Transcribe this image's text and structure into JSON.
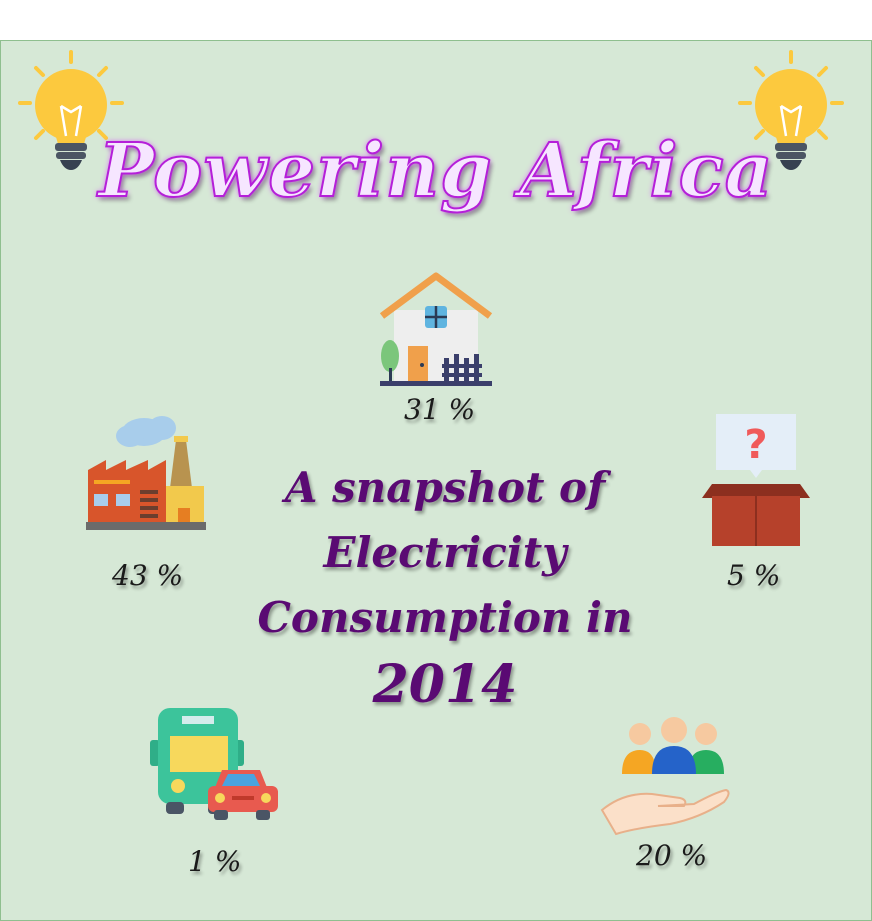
{
  "title": "Powering Africa",
  "subtitle_lines": [
    "A snapshot of",
    "Electricity",
    "Consumption in"
  ],
  "year": "2014",
  "sectors": {
    "residential": {
      "icon": "house-icon",
      "value": "31 %"
    },
    "industry": {
      "icon": "factory-icon",
      "value": "43 %"
    },
    "other": {
      "icon": "question-box-icon",
      "value": "5 %"
    },
    "transport": {
      "icon": "bus-car-icon",
      "value": "1 %"
    },
    "services": {
      "icon": "people-hand-icon",
      "value": "20 %"
    }
  },
  "colors": {
    "background": "#d6e8d6",
    "title_stroke": "#b51fd9",
    "subtitle": "#5a0a73",
    "bulb": "#fcc93e"
  }
}
